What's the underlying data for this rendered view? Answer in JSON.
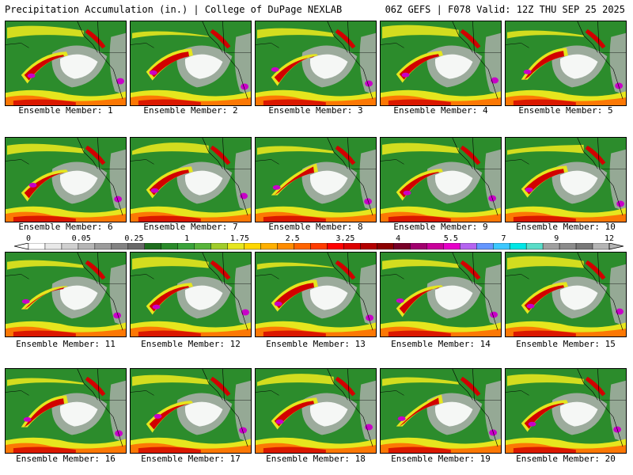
{
  "header": {
    "title_left": "Precipitation Accumulation (in.) | College of DuPage NEXLAB",
    "title_right": "06Z GEFS | F078 Valid: 12Z THU SEP 25 2025"
  },
  "panels": [
    {
      "caption": "Ensemble Member: 1"
    },
    {
      "caption": "Ensemble Member: 2"
    },
    {
      "caption": "Ensemble Member: 3"
    },
    {
      "caption": "Ensemble Member: 4"
    },
    {
      "caption": "Ensemble Member: 5"
    },
    {
      "caption": "Ensemble Member: 6"
    },
    {
      "caption": "Ensemble Member: 7"
    },
    {
      "caption": "Ensemble Member: 8"
    },
    {
      "caption": "Ensemble Member: 9"
    },
    {
      "caption": "Ensemble Member: 10"
    },
    {
      "caption": "Ensemble Member: 11"
    },
    {
      "caption": "Ensemble Member: 12"
    },
    {
      "caption": "Ensemble Member: 13"
    },
    {
      "caption": "Ensemble Member: 14"
    },
    {
      "caption": "Ensemble Member: 15"
    },
    {
      "caption": "Ensemble Member: 16"
    },
    {
      "caption": "Ensemble Member: 17"
    },
    {
      "caption": "Ensemble Member: 18"
    },
    {
      "caption": "Ensemble Member: 19"
    },
    {
      "caption": "Ensemble Member: 20"
    }
  ],
  "color_scale": {
    "labels": [
      "0",
      "0.05",
      "0.25",
      "1",
      "1.75",
      "2.5",
      "3.25",
      "4",
      "5.5",
      "7",
      "9",
      "12"
    ],
    "colors": [
      "#ffffff",
      "#e8e8e8",
      "#cfcfcf",
      "#b5b5b5",
      "#9b9b9b",
      "#828282",
      "#696969",
      "#1e6e1e",
      "#2a8a2a",
      "#3aa23a",
      "#58b43a",
      "#a0cc2a",
      "#e6e61e",
      "#ffd700",
      "#ffb000",
      "#ff8c00",
      "#ff6400",
      "#ff3c00",
      "#ff0000",
      "#dc0000",
      "#b40000",
      "#8c0000",
      "#780028",
      "#a0006e",
      "#c8009a",
      "#e600c8",
      "#b464f0",
      "#6496ff",
      "#3cc8ff",
      "#00e6e6",
      "#5adcc8",
      "#a0a0a0",
      "#8c8c8c",
      "#787878",
      "#b4b4b4"
    ]
  },
  "map_colors": {
    "ocean_dry": "#ffffff",
    "trace": "#b0b0b0",
    "light": "#2c8c2c",
    "moderate": "#e6e61e",
    "heavy": "#ff6400",
    "very_heavy": "#d20000",
    "extreme": "#c800c8"
  }
}
